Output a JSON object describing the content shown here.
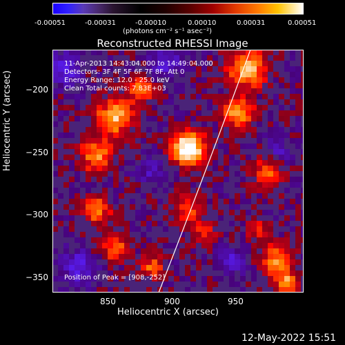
{
  "colorbar": {
    "ticks": [
      "-0.00051",
      "-0.00031",
      "-0.00010",
      "0.00010",
      "0.00031",
      "0.00051"
    ],
    "unit": "(photons cm⁻² s⁻¹ asec⁻²)"
  },
  "title": "Reconstructed RHESSI Image",
  "axes": {
    "xlabel": "Heliocentric X (arcsec)",
    "ylabel": "Heliocentric Y (arcsec)",
    "xticks": [
      "850",
      "900",
      "950"
    ],
    "yticks": [
      "−200",
      "−250",
      "−300",
      "−350"
    ]
  },
  "info": {
    "line1": "11-Apr-2013 14:43:04.000 to 14:49:04.000",
    "line2": "Detectors: 3F 4F 5F 6F 7F 8F, Att 0",
    "line3": "Energy Range: 12.0 - 25.0 keV",
    "line4": "Clean    Total counts: 7.83E+03",
    "peak": "Position of Peak = [908,-252]"
  },
  "footer": "12-May-2022 15:51",
  "chart_data": {
    "type": "heatmap",
    "xlabel": "Heliocentric X (arcsec)",
    "ylabel": "Heliocentric Y (arcsec)",
    "xlim": [
      805,
      995
    ],
    "ylim": [
      -365,
      -175
    ],
    "colorbar_range": [
      -0.00051,
      0.00051
    ],
    "peak": [
      908,
      -252
    ],
    "limb_x_at_y": [
      [
        945,
        -175
      ],
      [
        883,
        -365
      ]
    ],
    "colors": {
      "negative": "#3020ff",
      "zero": "#000000",
      "positive_low": "#a00000",
      "positive_mid": "#ff7a00",
      "positive_high": "#ffffff"
    }
  }
}
